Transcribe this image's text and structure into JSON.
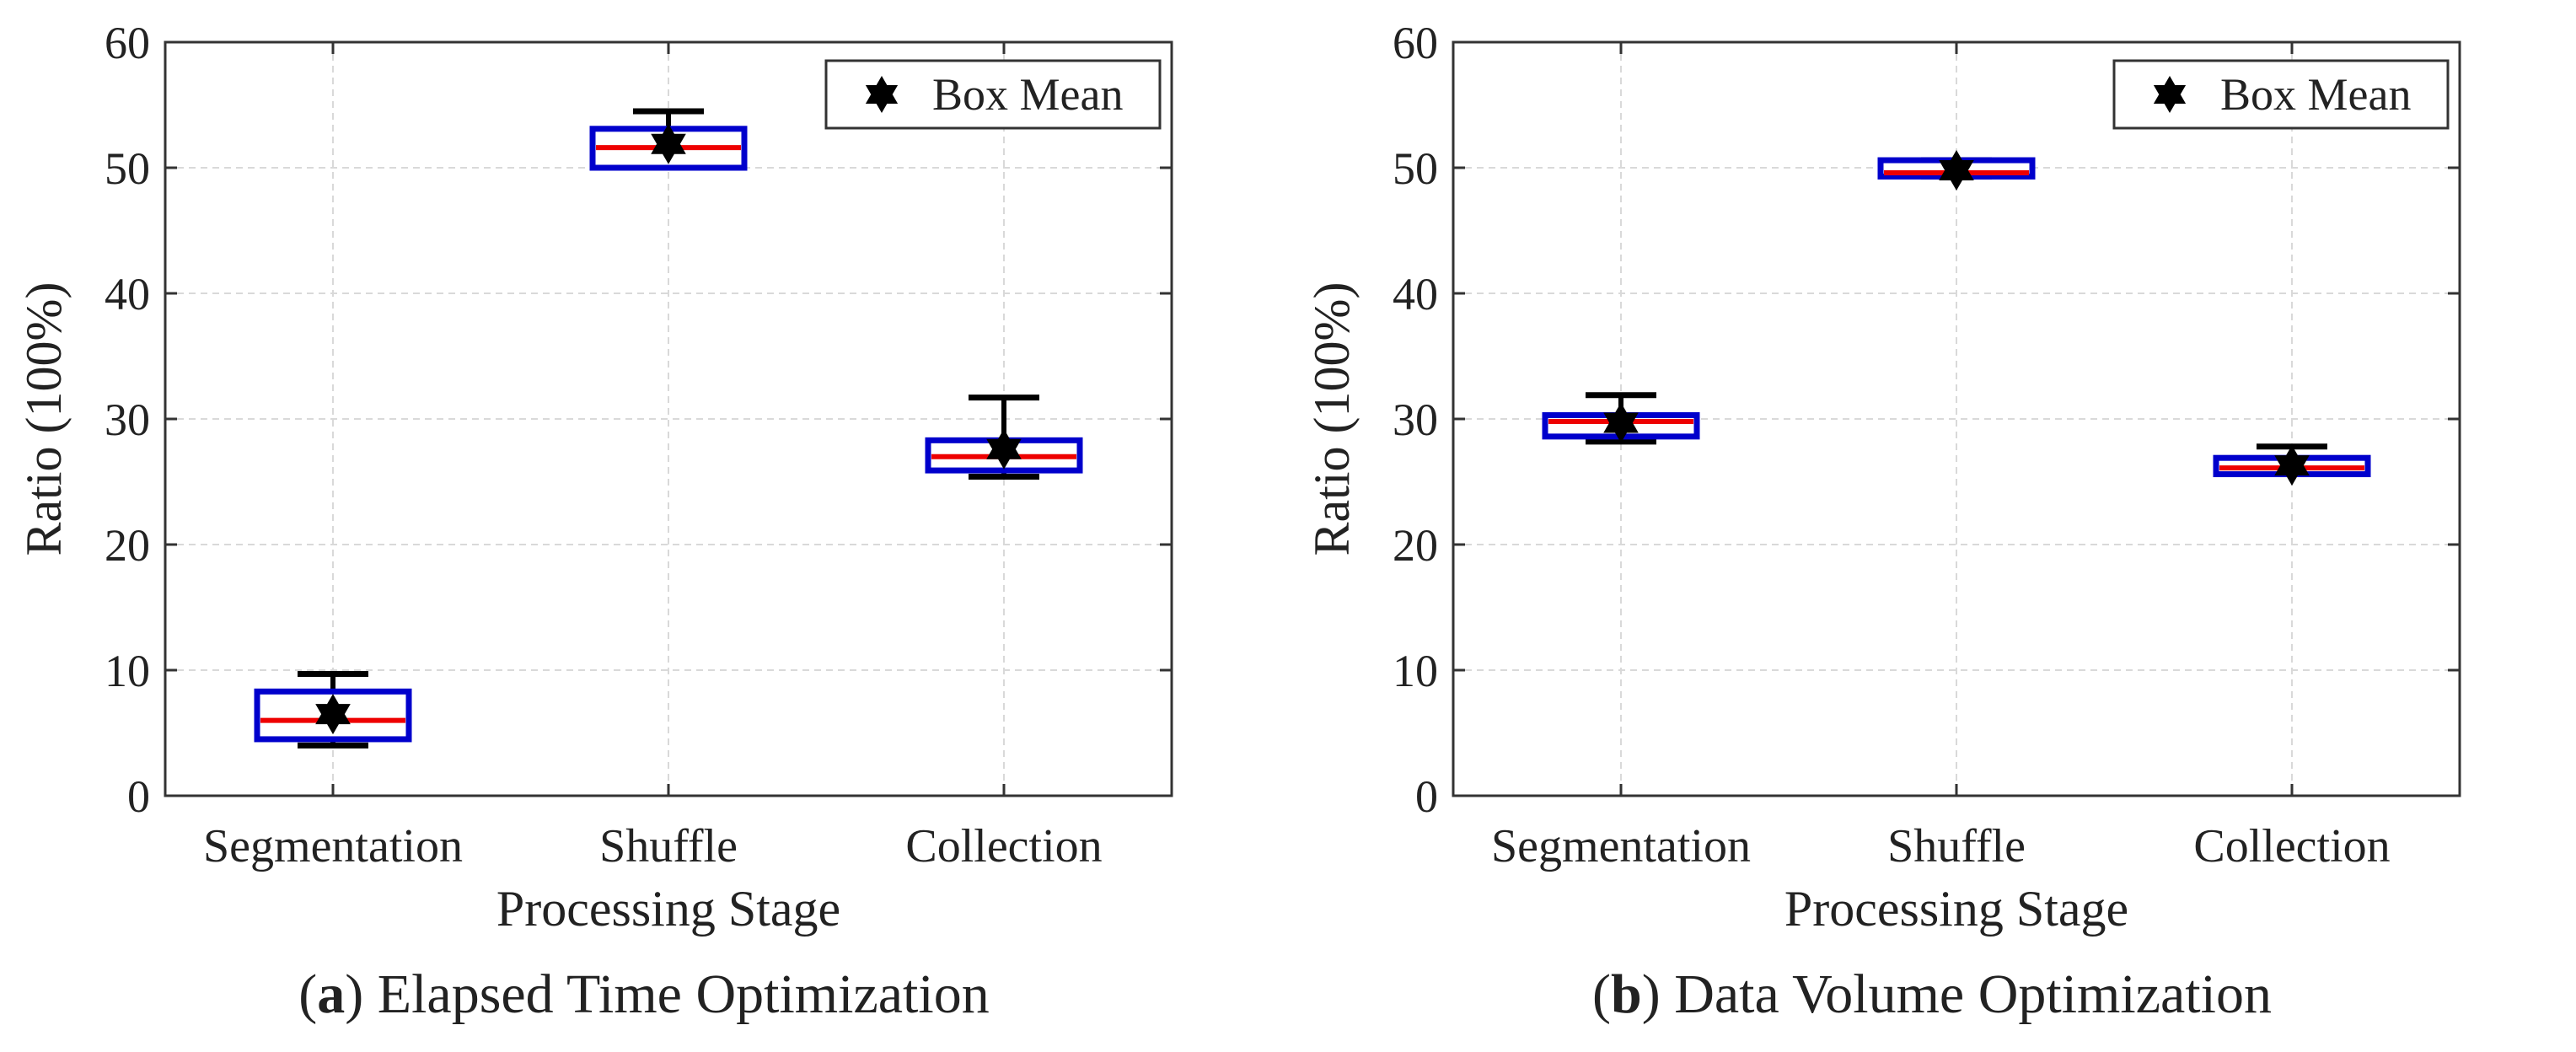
{
  "colors": {
    "box": "#0000cc",
    "median": "#ee0000",
    "whisker": "#000000",
    "grid": "#d9d9d9",
    "axis": "#333333",
    "mean_marker": "#000000"
  },
  "panels": [
    {
      "letter": "a",
      "caption": "Elapsed Time Optimization",
      "legend": {
        "marker": "star",
        "label": "Box Mean",
        "position": "top-right"
      }
    },
    {
      "letter": "b",
      "caption": "Data Volume Optimization",
      "legend": {
        "marker": "star",
        "label": "Box Mean",
        "position": "top-right"
      }
    }
  ],
  "chart_data": [
    {
      "type": "box",
      "title": "",
      "xlabel": "Processing Stage",
      "ylabel": "Ratio (100%)",
      "ylim": [
        0,
        60
      ],
      "yticks": [
        0,
        10,
        20,
        30,
        40,
        50,
        60
      ],
      "grid": true,
      "categories": [
        "Segmentation",
        "Shuffle",
        "Collection"
      ],
      "boxes": [
        {
          "category": "Segmentation",
          "min": 4.0,
          "q1": 4.5,
          "median": 6.0,
          "q3": 8.3,
          "max": 9.7,
          "mean": 6.5
        },
        {
          "category": "Shuffle",
          "min": 50.0,
          "q1": 50.0,
          "median": 51.6,
          "q3": 53.1,
          "max": 54.5,
          "mean": 51.9
        },
        {
          "category": "Collection",
          "min": 25.4,
          "q1": 25.9,
          "median": 27.0,
          "q3": 28.3,
          "max": 31.7,
          "mean": 27.6
        }
      ]
    },
    {
      "type": "box",
      "title": "",
      "xlabel": "Processing Stage",
      "ylabel": "Ratio (100%)",
      "ylim": [
        0,
        60
      ],
      "yticks": [
        0,
        10,
        20,
        30,
        40,
        50,
        60
      ],
      "grid": true,
      "categories": [
        "Segmentation",
        "Shuffle",
        "Collection"
      ],
      "boxes": [
        {
          "category": "Segmentation",
          "min": 28.2,
          "q1": 28.6,
          "median": 29.8,
          "q3": 30.3,
          "max": 31.9,
          "mean": 29.7
        },
        {
          "category": "Shuffle",
          "min": 49.3,
          "q1": 49.3,
          "median": 49.6,
          "q3": 50.6,
          "max": 50.6,
          "mean": 49.8
        },
        {
          "category": "Collection",
          "min": 25.6,
          "q1": 25.6,
          "median": 26.1,
          "q3": 26.9,
          "max": 27.8,
          "mean": 26.3
        }
      ]
    }
  ]
}
